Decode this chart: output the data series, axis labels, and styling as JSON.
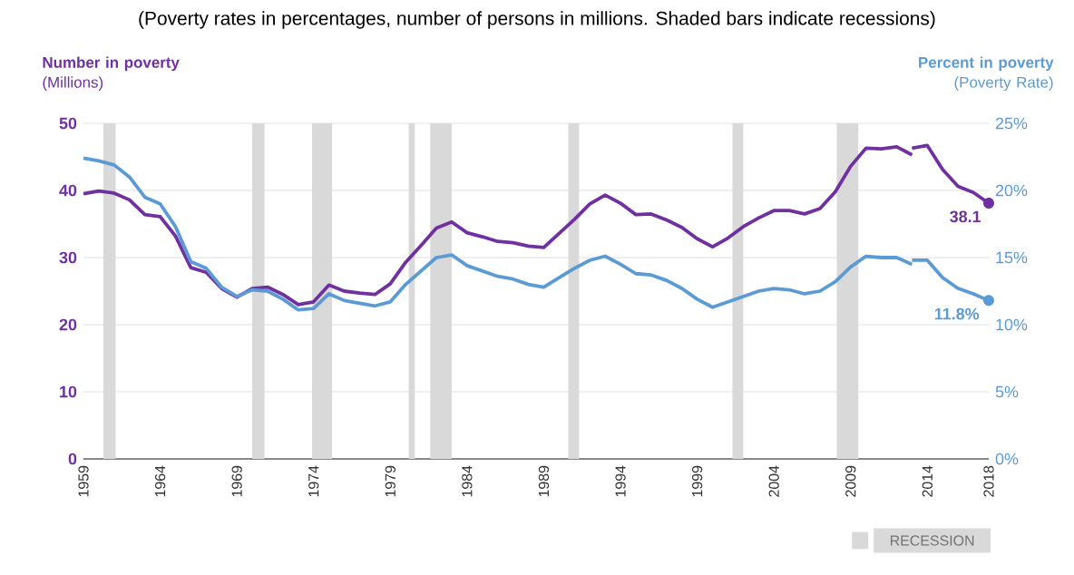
{
  "chart_data": {
    "type": "line",
    "title": "(Poverty rates in percentages, number of persons in millions. Shaded bars indicate recessions)",
    "ylabel": "**Number in poverty** (Millions)",
    "y2label": "**Percent in poverty** (Poverty Rate)",
    "series": [
      {
        "color": "#7030a0",
        "x": [
          1959,
          1960,
          1961,
          1962,
          1963,
          1964,
          1965,
          1966,
          1967,
          1968,
          1969,
          1970,
          1971,
          1972,
          1973,
          1974,
          1975,
          1976,
          1977,
          1978,
          1979,
          1980,
          1981,
          1982,
          1983,
          1984,
          1985,
          1986,
          1987,
          1988,
          1989,
          1990,
          1991,
          1992,
          1993,
          1994,
          1995,
          1996,
          1997,
          1998,
          1999,
          2000,
          2001,
          2002,
          2003,
          2004,
          2005,
          2006,
          2007,
          2008,
          2009,
          2010,
          2011,
          2012,
          2013
        ],
        "values": [
          39.5,
          39.9,
          39.6,
          38.6,
          36.4,
          36.1,
          33.2,
          28.5,
          27.8,
          25.4,
          24.1,
          25.4,
          25.6,
          24.5,
          23.0,
          23.4,
          25.9,
          25.0,
          24.7,
          24.5,
          26.1,
          29.3,
          31.8,
          34.4,
          35.3,
          33.7,
          33.1,
          32.4,
          32.2,
          31.7,
          31.5,
          33.6,
          35.7,
          38.0,
          39.3,
          38.1,
          36.4,
          36.5,
          35.6,
          34.5,
          32.8,
          31.6,
          32.9,
          34.6,
          35.9,
          37.0,
          37.0,
          36.5,
          37.3,
          39.8,
          43.6,
          46.3,
          46.2,
          46.5,
          45.3
        ]
      },
      {
        "color": "#7030a0",
        "x": [
          2013,
          2014,
          2015,
          2016,
          2017,
          2018
        ],
        "values": [
          46.3,
          46.7,
          43.1,
          40.6,
          39.7,
          38.1
        ]
      },
      {
        "color": "#5b9bd5",
        "axis": "y2",
        "x": [
          1959,
          1960,
          1961,
          1962,
          1963,
          1964,
          1965,
          1966,
          1967,
          1968,
          1969,
          1970,
          1971,
          1972,
          1973,
          1974,
          1975,
          1976,
          1977,
          1978,
          1979,
          1980,
          1981,
          1982,
          1983,
          1984,
          1985,
          1986,
          1987,
          1988,
          1989,
          1990,
          1991,
          1992,
          1993,
          1994,
          1995,
          1996,
          1997,
          1998,
          1999,
          2000,
          2001,
          2002,
          2003,
          2004,
          2005,
          2006,
          2007,
          2008,
          2009,
          2010,
          2011,
          2012,
          2013
        ],
        "values": [
          22.4,
          22.2,
          21.9,
          21.0,
          19.5,
          19.0,
          17.3,
          14.7,
          14.2,
          12.8,
          12.1,
          12.6,
          12.5,
          11.9,
          11.1,
          11.2,
          12.3,
          11.8,
          11.6,
          11.4,
          11.7,
          13.0,
          14.0,
          15.0,
          15.2,
          14.4,
          14.0,
          13.6,
          13.4,
          13.0,
          12.8,
          13.5,
          14.2,
          14.8,
          15.1,
          14.5,
          13.8,
          13.7,
          13.3,
          12.7,
          11.9,
          11.3,
          11.7,
          12.1,
          12.5,
          12.7,
          12.6,
          12.3,
          12.5,
          13.2,
          14.3,
          15.1,
          15.0,
          15.0,
          14.5
        ]
      },
      {
        "color": "#5b9bd5",
        "axis": "y2",
        "x": [
          2013,
          2014,
          2015,
          2016,
          2017,
          2018
        ],
        "values": [
          14.8,
          14.8,
          13.5,
          12.7,
          12.3,
          11.8
        ]
      }
    ],
    "xlim": [
      1959,
      2018
    ],
    "xticks": [
      1959,
      1964,
      1969,
      1974,
      1979,
      1984,
      1989,
      1994,
      1999,
      2004,
      2009,
      2014,
      2018
    ],
    "ylim": [
      0,
      50
    ],
    "yticks": [
      0,
      10,
      20,
      30,
      40,
      50
    ],
    "y2lim": [
      0,
      25
    ],
    "y2ticks": [
      {
        "value": 0,
        "label": "0%"
      },
      {
        "value": 5,
        "label": "5%"
      },
      {
        "value": 10,
        "label": "10%"
      },
      {
        "value": 15,
        "label": "15%"
      },
      {
        "value": 20,
        "label": "20%"
      },
      {
        "value": 25,
        "label": "25%"
      }
    ],
    "bands": [
      {
        "axis": "x",
        "from": 1960.3,
        "to": 1961.1,
        "color": "#d9d9d9",
        "label": "RECESSION"
      },
      {
        "axis": "x",
        "from": 1970.0,
        "to": 1970.8,
        "color": "#d9d9d9"
      },
      {
        "axis": "x",
        "from": 1973.9,
        "to": 1975.2,
        "color": "#d9d9d9"
      },
      {
        "axis": "x",
        "from": 1980.2,
        "to": 1980.6,
        "color": "#d9d9d9"
      },
      {
        "axis": "x",
        "from": 1981.6,
        "to": 1983.0,
        "color": "#d9d9d9"
      },
      {
        "axis": "x",
        "from": 1990.6,
        "to": 1991.3,
        "color": "#d9d9d9"
      },
      {
        "axis": "x",
        "from": 2001.3,
        "to": 2002.0,
        "color": "#d9d9d9"
      },
      {
        "axis": "x",
        "from": 2008.1,
        "to": 2009.5,
        "color": "#d9d9d9"
      }
    ],
    "annotations": [
      "38.1",
      "11.8%"
    ],
    "grid": "y",
    "legend": "bottom right",
    "line_style": "solid",
    "marker": "none"
  }
}
